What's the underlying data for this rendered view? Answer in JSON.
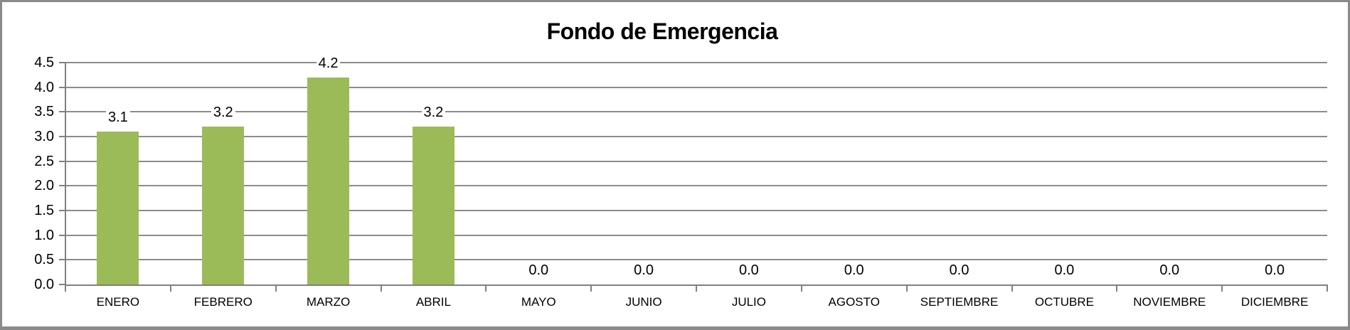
{
  "chart_data": {
    "type": "bar",
    "title": "Fondo de Emergencia",
    "categories": [
      "ENERO",
      "FEBRERO",
      "MARZO",
      "ABRIL",
      "MAYO",
      "JUNIO",
      "JULIO",
      "AGOSTO",
      "SEPTIEMBRE",
      "OCTUBRE",
      "NOVIEMBRE",
      "DICIEMBRE"
    ],
    "values": [
      3.1,
      3.2,
      4.2,
      3.2,
      0,
      0,
      0,
      0,
      0,
      0,
      0,
      0
    ],
    "data_labels": [
      "3.1",
      "3.2",
      "4.2",
      "3.2",
      "0.0",
      "0.0",
      "0.0",
      "0.0",
      "0.0",
      "0.0",
      "0.0",
      "0.0"
    ],
    "xlabel": "",
    "ylabel": "",
    "ylim": [
      0,
      4.5
    ],
    "y_tick_step": 0.5,
    "y_tick_labels": [
      "0.0",
      "0.5",
      "1.0",
      "1.5",
      "2.0",
      "2.5",
      "3.0",
      "3.5",
      "4.0",
      "4.5"
    ],
    "grid": true,
    "legend": "none",
    "colors": {
      "bar": "#9BBB59",
      "gridline": "#8C8C8C",
      "axis": "#808080",
      "text": "#000000",
      "title": "#000000",
      "frame": "#8A8A8A",
      "background": "#FFFFFF"
    }
  }
}
